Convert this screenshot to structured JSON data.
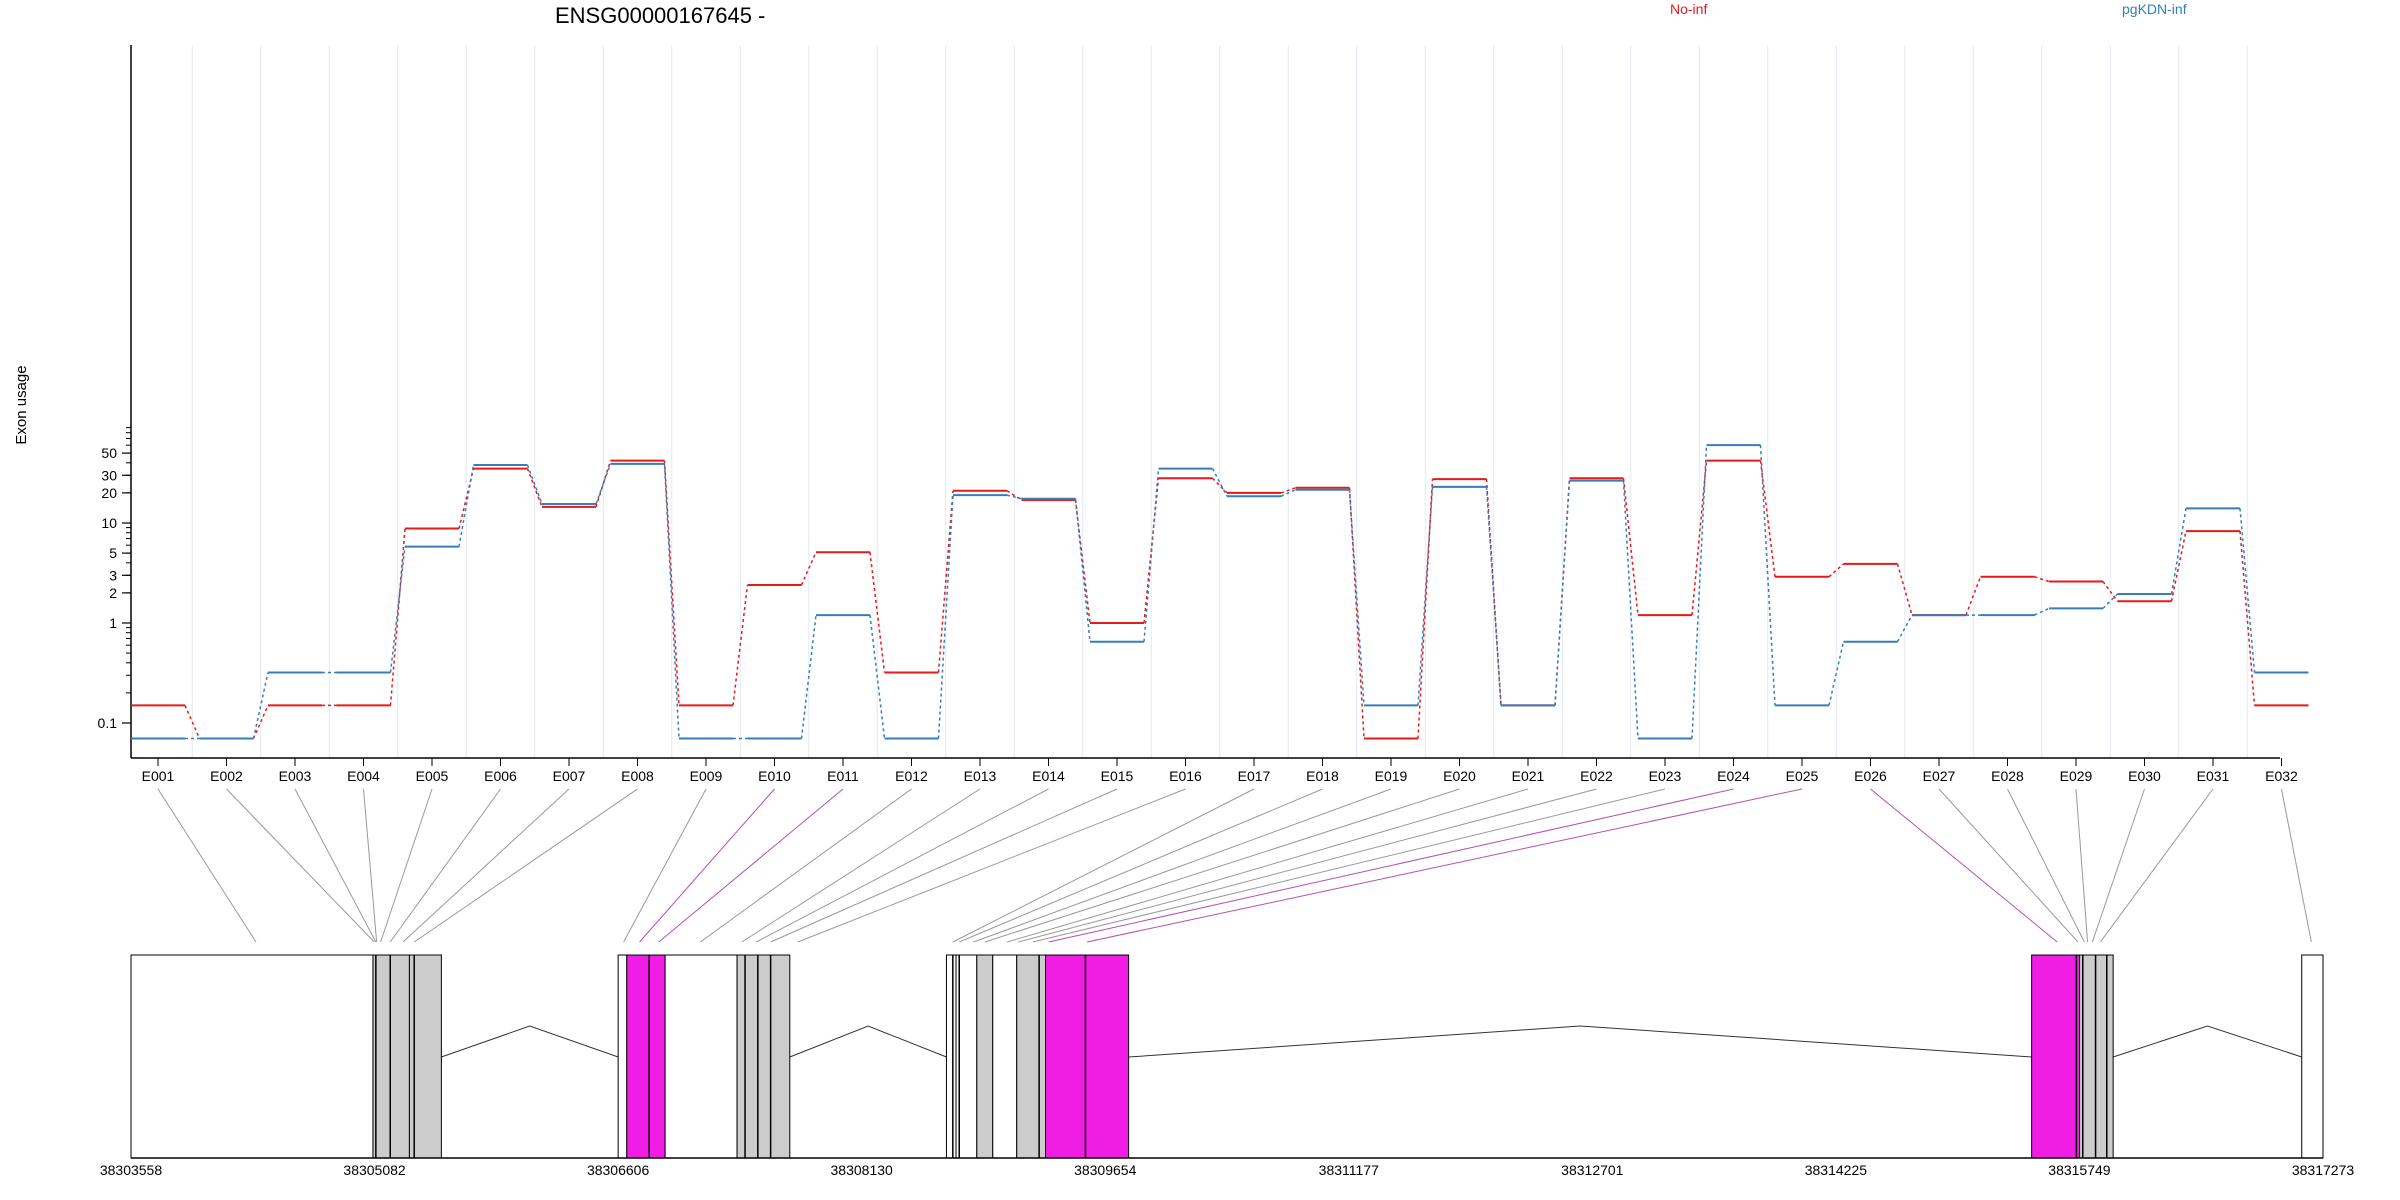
{
  "chart_data": {
    "type": "line",
    "title": "ENSG00000167645 -",
    "ylabel": "Exon usage",
    "y_scale": "log",
    "y_ticks": [
      0.1,
      1,
      2,
      3,
      5,
      10,
      20,
      30,
      50
    ],
    "grid": true,
    "legend_placement": "top",
    "categories": [
      "E001",
      "E002",
      "E003",
      "E004",
      "E005",
      "E006",
      "E007",
      "E008",
      "E009",
      "E010",
      "E011",
      "E012",
      "E013",
      "E014",
      "E015",
      "E016",
      "E017",
      "E018",
      "E019",
      "E020",
      "E021",
      "E022",
      "E023",
      "E024",
      "E025",
      "E026",
      "E027",
      "E028",
      "E029",
      "E030",
      "E031",
      "E032"
    ],
    "series": [
      {
        "name": "No-inf",
        "color": "#e41a1c",
        "values": [
          0.15,
          0.07,
          0.15,
          0.15,
          8.8,
          35,
          14.5,
          42,
          0.15,
          2.4,
          5.1,
          0.32,
          21,
          17,
          1.0,
          28,
          20,
          22.5,
          0.07,
          27.5,
          0.15,
          28,
          1.2,
          42,
          2.9,
          3.9,
          1.2,
          2.9,
          2.6,
          1.65,
          8.3,
          0.15
        ]
      },
      {
        "name": "pgKDN-inf",
        "color": "#377eb8",
        "values": [
          0.07,
          0.07,
          0.32,
          0.32,
          5.8,
          38,
          15.5,
          39,
          0.07,
          0.07,
          1.2,
          0.07,
          19,
          17.5,
          0.65,
          35,
          18.5,
          21.5,
          0.15,
          23,
          0.15,
          26.5,
          0.07,
          60,
          0.15,
          0.65,
          1.2,
          1.2,
          1.4,
          1.95,
          14,
          0.32
        ]
      }
    ],
    "genomic_axis": {
      "tick_labels": [
        "38303558",
        "38305082",
        "38306606",
        "38308130",
        "38309654",
        "38311177",
        "38312701",
        "38314225",
        "38315749",
        "38317273"
      ],
      "start": 38303558,
      "end": 38317273
    },
    "gene_model": {
      "exons": [
        {
          "start": 38303558,
          "end": 38305072,
          "color": "#ffffff"
        },
        {
          "start": 38305072,
          "end": 38305300,
          "color": "#cccccc"
        },
        {
          "start": 38305300,
          "end": 38305500,
          "color": "#cccccc"
        },
        {
          "start": 38306606,
          "end": 38306660,
          "color": "#ffffff"
        },
        {
          "start": 38306660,
          "end": 38306900,
          "color": "#f01ee5"
        },
        {
          "start": 38306900,
          "end": 38307350,
          "color": "#ffffff"
        },
        {
          "start": 38307350,
          "end": 38307680,
          "color": "#cccccc"
        },
        {
          "start": 38308660,
          "end": 38308720,
          "color": "#ffffff"
        },
        {
          "start": 38308720,
          "end": 38308850,
          "color": "#ffffff"
        },
        {
          "start": 38308850,
          "end": 38308950,
          "color": "#cccccc"
        },
        {
          "start": 38308950,
          "end": 38309100,
          "color": "#ffffff"
        },
        {
          "start": 38309100,
          "end": 38309280,
          "color": "#cccccc"
        },
        {
          "start": 38309280,
          "end": 38309800,
          "color": "#f01ee5"
        },
        {
          "start": 38315450,
          "end": 38315750,
          "color": "#f01ee5"
        },
        {
          "start": 38315750,
          "end": 38315960,
          "color": "#cccccc"
        },
        {
          "start": 38317140,
          "end": 38317273,
          "color": "#ffffff"
        }
      ],
      "dividers": [
        38305090,
        38305180,
        38305330,
        38306800,
        38307400,
        38307480,
        38307560,
        38308700,
        38308740,
        38309240,
        38309530,
        38315730,
        38315770,
        38315850,
        38315920
      ],
      "introns": [
        {
          "start": 38305500,
          "end": 38306606
        },
        {
          "start": 38307680,
          "end": 38308660
        },
        {
          "start": 38309800,
          "end": 38315450
        },
        {
          "start": 38315960,
          "end": 38317140
        }
      ],
      "exon_links": [
        38304340,
        38305080,
        38305090,
        38305095,
        38305120,
        38305180,
        38305260,
        38305330,
        38306640,
        38306740,
        38306860,
        38307120,
        38307380,
        38307470,
        38307560,
        38307730,
        38308700,
        38308740,
        38308830,
        38308900,
        38309040,
        38309110,
        38309200,
        38309300,
        38309540,
        38315610,
        38315740,
        38315780,
        38315800,
        38315830,
        38315880,
        38317200
      ],
      "highlight_links": [
        "E010",
        "E011",
        "E024",
        "E025",
        "E026"
      ],
      "highlight_color": "#b44fb3",
      "link_color": "#999999"
    }
  }
}
